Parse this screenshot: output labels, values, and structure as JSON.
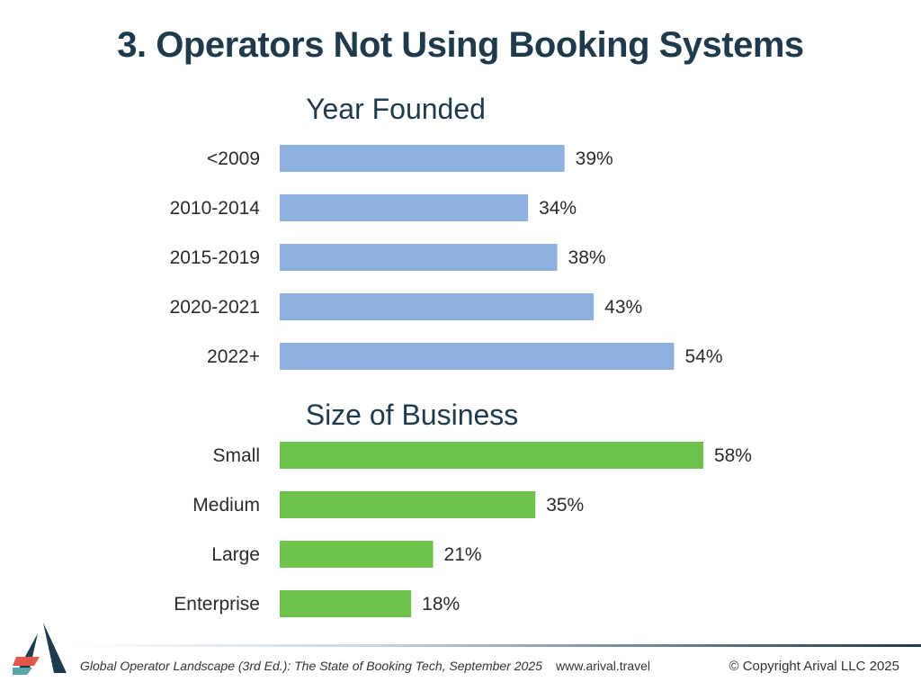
{
  "title": "3. Operators Not Using Booking Systems",
  "chart_data": [
    {
      "type": "bar",
      "orientation": "horizontal",
      "title": "Year Founded",
      "categories": [
        "<2009",
        "2010-2014",
        "2015-2019",
        "2020-2021",
        "2022+"
      ],
      "values": [
        39,
        34,
        38,
        43,
        54
      ],
      "value_labels": [
        "39%",
        "34%",
        "38%",
        "43%",
        "54%"
      ],
      "unit": "%",
      "color": "#8eb1e0"
    },
    {
      "type": "bar",
      "orientation": "horizontal",
      "title": "Size of Business",
      "categories": [
        "Small",
        "Medium",
        "Large",
        "Enterprise"
      ],
      "values": [
        58,
        35,
        21,
        18
      ],
      "value_labels": [
        "58%",
        "35%",
        "21%",
        "18%"
      ],
      "unit": "%",
      "color": "#6cc24a"
    }
  ],
  "footer": {
    "citation": "Global Operator Landscape (3rd Ed.):  The State of Booking Tech, September 2025",
    "url": "www.arival.travel",
    "copyright": "© Copyright Arival LLC 2025"
  },
  "colors": {
    "title": "#1e3a4c",
    "logo_dark": "#1e3a4c",
    "logo_red": "#e2574c",
    "logo_teal": "#5aa6a6"
  }
}
